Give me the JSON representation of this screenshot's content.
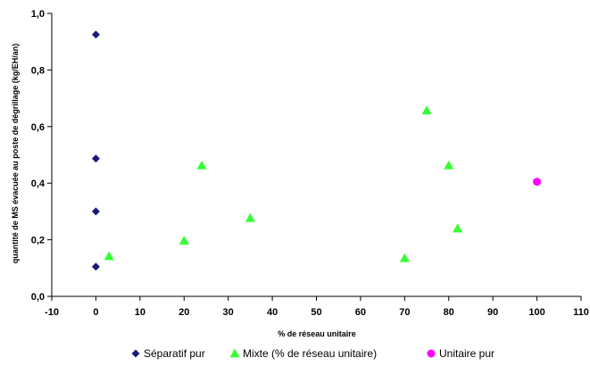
{
  "chart_data": {
    "type": "scatter",
    "xlabel": "% de réseau unitaire",
    "ylabel": "quantité de MS évacuée au poste de dégrillage (kg/EH/an)",
    "xlim": [
      -10,
      110
    ],
    "ylim": [
      0,
      1.0
    ],
    "x_ticks": [
      "-10",
      "0",
      "10",
      "20",
      "30",
      "40",
      "50",
      "60",
      "70",
      "80",
      "90",
      "100",
      "110"
    ],
    "y_ticks": [
      "0,0",
      "0,2",
      "0,4",
      "0,6",
      "0,8",
      "1,0"
    ],
    "grid": false,
    "legend_position": "bottom",
    "series": [
      {
        "name": "Séparatif pur",
        "marker": "diamond",
        "color": "#1a1a7a",
        "points": [
          [
            0,
            0.925
          ],
          [
            0,
            0.487
          ],
          [
            0,
            0.3
          ],
          [
            0,
            0.105
          ]
        ]
      },
      {
        "name": "Mixte (% de réseau unitaire)",
        "marker": "triangle",
        "color": "#33ff33",
        "points": [
          [
            3,
            0.142
          ],
          [
            20,
            0.197
          ],
          [
            24,
            0.463
          ],
          [
            35,
            0.277
          ],
          [
            70,
            0.135
          ],
          [
            75,
            0.657
          ],
          [
            80,
            0.463
          ],
          [
            82,
            0.24
          ]
        ]
      },
      {
        "name": "Unitaire pur",
        "marker": "circle",
        "color": "#ff00ff",
        "points": [
          [
            100,
            0.405
          ]
        ]
      }
    ]
  }
}
